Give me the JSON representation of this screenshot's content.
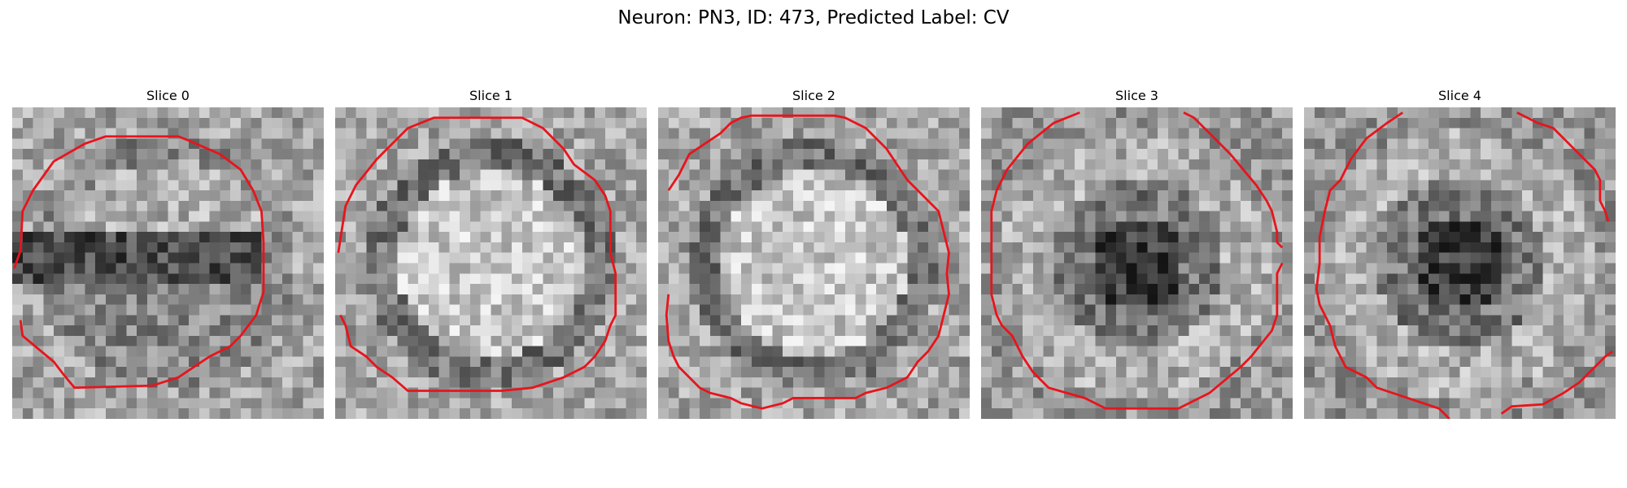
{
  "figure": {
    "title": "Neuron: PN3, ID: 473, Predicted Label: CV"
  },
  "panels": [
    {
      "title": "Slice 0",
      "pattern": "band"
    },
    {
      "title": "Slice 1",
      "pattern": "bright-disk"
    },
    {
      "title": "Slice 2",
      "pattern": "bright-disk"
    },
    {
      "title": "Slice 3",
      "pattern": "dark-center"
    },
    {
      "title": "Slice 4",
      "pattern": "dark-center"
    }
  ],
  "colors": {
    "contour": "#e8141c",
    "background": "#ffffff"
  }
}
